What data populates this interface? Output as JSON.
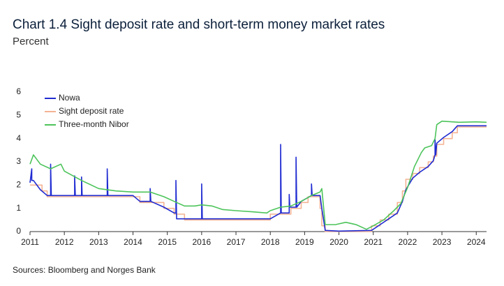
{
  "chart_data": {
    "type": "line",
    "title": "Chart 1.4 Sight deposit rate and short-term money market rates",
    "subtitle": "Percent",
    "source": "Sources: Bloomberg and Norges Bank",
    "xlim": [
      2011,
      2024.3
    ],
    "xticks": [
      2011,
      2012,
      2013,
      2014,
      2015,
      2016,
      2017,
      2018,
      2019,
      2020,
      2021,
      2022,
      2023,
      2024
    ],
    "ylim": [
      0,
      6
    ],
    "yticks": [
      0,
      1,
      2,
      3,
      4,
      5,
      6
    ],
    "grid": false,
    "legend": "top-left",
    "series": [
      {
        "name": "Nowa",
        "color": "#1f2bd1",
        "x": [
          2011,
          2011.05,
          2011.05,
          2011.1,
          2011.3,
          2011.5,
          2011.6,
          2011.6,
          2011.62,
          2012.0,
          2012.3,
          2012.3,
          2012.32,
          2012.5,
          2012.5,
          2012.52,
          2013.0,
          2013.25,
          2013.25,
          2013.27,
          2014.0,
          2014.2,
          2014.5,
          2014.5,
          2014.52,
          2014.9,
          2015.2,
          2015.25,
          2015.25,
          2015.27,
          2015.5,
          2016.0,
          2016.0,
          2016.02,
          2017.0,
          2018.0,
          2018.3,
          2018.3,
          2018.32,
          2018.55,
          2018.55,
          2018.57,
          2018.75,
          2018.75,
          2018.77,
          2018.9,
          2019.2,
          2019.2,
          2019.22,
          2019.45,
          2019.5,
          2019.6,
          2020.0,
          2020.95,
          2021.2,
          2021.45,
          2021.7,
          2021.85,
          2021.95,
          2022.15,
          2022.35,
          2022.6,
          2022.75,
          2022.8,
          2022.8,
          2022.82,
          2022.85,
          2023.05,
          2023.3,
          2023.45,
          2024.3
        ],
        "values": [
          2.1,
          2.7,
          2.2,
          2.2,
          1.8,
          1.55,
          1.55,
          2.9,
          1.55,
          1.55,
          1.55,
          2.4,
          1.55,
          1.55,
          2.35,
          1.55,
          1.55,
          1.55,
          2.7,
          1.55,
          1.55,
          1.3,
          1.3,
          1.85,
          1.3,
          1.05,
          0.8,
          0.8,
          2.2,
          0.55,
          0.55,
          0.55,
          2.05,
          0.55,
          0.55,
          0.55,
          0.8,
          3.75,
          0.8,
          0.8,
          1.6,
          1.05,
          1.05,
          3.2,
          1.05,
          1.3,
          1.55,
          2.05,
          1.55,
          1.55,
          1.0,
          0.05,
          0.02,
          0.05,
          0.3,
          0.55,
          0.8,
          1.3,
          1.8,
          2.3,
          2.55,
          2.8,
          3.05,
          3.3,
          3.95,
          3.3,
          3.8,
          4.05,
          4.3,
          4.55,
          4.55
        ]
      },
      {
        "name": "Sight deposit rate",
        "color": "#f4b393",
        "x": [
          2011,
          2011.35,
          2011.35,
          2011.5,
          2011.5,
          2014.2,
          2014.2,
          2014.9,
          2014.9,
          2015.2,
          2015.2,
          2015.5,
          2015.5,
          2018.0,
          2018.0,
          2018.6,
          2018.6,
          2018.9,
          2018.9,
          2019.1,
          2019.1,
          2019.45,
          2019.45,
          2019.5,
          2019.5,
          2019.6,
          2019.6,
          2020.95,
          2020.95,
          2021.2,
          2021.2,
          2021.45,
          2021.45,
          2021.7,
          2021.7,
          2021.85,
          2021.85,
          2021.95,
          2021.95,
          2022.15,
          2022.15,
          2022.35,
          2022.35,
          2022.6,
          2022.6,
          2022.75,
          2022.75,
          2022.85,
          2022.85,
          2023.05,
          2023.05,
          2023.3,
          2023.3,
          2023.45,
          2023.45,
          2024.3
        ],
        "values": [
          2.0,
          2.0,
          1.75,
          1.75,
          1.5,
          1.5,
          1.25,
          1.25,
          1.0,
          1.0,
          0.75,
          0.75,
          0.5,
          0.5,
          0.75,
          0.75,
          1.0,
          1.0,
          1.25,
          1.25,
          1.5,
          1.5,
          1.0,
          1.0,
          0.25,
          0.25,
          0,
          0,
          0.25,
          0.25,
          0.5,
          0.5,
          0.75,
          0.75,
          1.25,
          1.25,
          1.75,
          1.75,
          2.25,
          2.25,
          2.5,
          2.5,
          2.75,
          2.75,
          3.0,
          3.0,
          3.25,
          3.25,
          3.75,
          3.75,
          4.0,
          4.0,
          4.25,
          4.25,
          4.5,
          4.5
        ]
      },
      {
        "name": "Three-month Nibor",
        "color": "#4cc45a",
        "x": [
          2011,
          2011.1,
          2011.3,
          2011.6,
          2011.9,
          2012.0,
          2012.5,
          2013.0,
          2013.5,
          2014.0,
          2014.5,
          2014.9,
          2015.2,
          2015.5,
          2015.8,
          2016.0,
          2016.3,
          2016.6,
          2017.0,
          2017.5,
          2017.9,
          2018.0,
          2018.3,
          2018.6,
          2018.9,
          2019.2,
          2019.45,
          2019.5,
          2019.6,
          2019.9,
          2020.2,
          2020.5,
          2020.8,
          2021.0,
          2021.3,
          2021.6,
          2021.8,
          2022.0,
          2022.2,
          2022.4,
          2022.5,
          2022.7,
          2022.8,
          2022.85,
          2023.0,
          2023.5,
          2024.0,
          2024.3
        ],
        "values": [
          2.9,
          3.3,
          2.9,
          2.7,
          2.9,
          2.6,
          2.2,
          1.85,
          1.75,
          1.7,
          1.7,
          1.5,
          1.3,
          1.1,
          1.1,
          1.15,
          1.1,
          0.95,
          0.9,
          0.85,
          0.8,
          0.9,
          1.05,
          1.1,
          1.3,
          1.55,
          1.7,
          1.85,
          0.3,
          0.3,
          0.4,
          0.3,
          0.1,
          0.25,
          0.5,
          0.9,
          1.2,
          1.9,
          2.8,
          3.4,
          3.6,
          3.7,
          4.0,
          4.6,
          4.75,
          4.7,
          4.72,
          4.7
        ]
      }
    ]
  }
}
